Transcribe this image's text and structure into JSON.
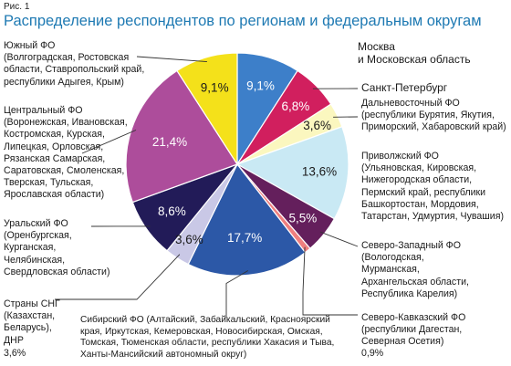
{
  "figure_label": "Рис. 1",
  "chart_data": {
    "type": "pie",
    "title": "Распределение респондентов по регионам и федеральным округам",
    "start": "top",
    "direction": "clockwise",
    "slices": [
      {
        "name": "Москва и Московская область",
        "label": "Москва\nи Московская область",
        "value": 9.1,
        "value_label": "9,1%",
        "color": "#3d7fc9",
        "text_color": "#ffffff"
      },
      {
        "name": "Санкт-Петербург",
        "label": "Санкт-Петербург",
        "value": 6.8,
        "value_label": "6,8%",
        "color": "#d11f5e",
        "text_color": "#ffffff"
      },
      {
        "name": "Дальневосточный ФО",
        "label": "Дальневосточный ФО\n(республики Бурятия, Якутия,\nПриморский, Хабаровский край)",
        "value": 3.6,
        "value_label": "3,6%",
        "color": "#fbf7bf",
        "text_color": "#1a1a1a"
      },
      {
        "name": "Приволжский ФО",
        "label": "Приволжский ФО\n(Ульяновская, Кировская,\nНижегородская области,\nПермский край, республики\nБашкортостан, Мордовия,\nТатарстан, Удмуртия, Чувашия)",
        "value": 13.6,
        "value_label": "13,6%",
        "color": "#c9e9f4",
        "text_color": "#1a1a1a"
      },
      {
        "name": "Северо-Западный ФО",
        "label": "Северо-Западный ФО\n(Вологодская,\nМурманская,\nАрхангельская области,\nРеспублика Карелия)",
        "value": 5.5,
        "value_label": "5,5%",
        "color": "#641f5c",
        "text_color": "#ffffff"
      },
      {
        "name": "Северо-Кавказский ФО",
        "label": "Северо-Кавказский ФО\n(республики Дагестан,\nСеверная Осетия)",
        "value": 0.9,
        "value_label": "0,9%",
        "color": "#ef7f7f",
        "text_color": "#1a1a1a"
      },
      {
        "name": "Сибирский ФО",
        "label": "Сибирский ФО (Алтайский, Забайкальский, Красноярский\nкрая, Иркутская, Кемеровская, Новосибирская, Омская,\nТомская, Тюменская области, республики Хакасия и Тыва,\nХанты-Мансийский автономный округ)",
        "value": 17.7,
        "value_label": "17,7%",
        "color": "#2c58a7",
        "text_color": "#ffffff"
      },
      {
        "name": "Страны СНГ",
        "label": "Страны СНГ\n(Казахстан,\nБеларусь),\nДНР",
        "value": 3.6,
        "value_label": "3,6%",
        "color": "#c9c8e6",
        "text_color": "#1a1a1a"
      },
      {
        "name": "Уральский ФО",
        "label": "Уральский ФО\n(Оренбургская,\nКурганская,\nЧелябинская,\nСвердловская области)",
        "value": 8.6,
        "value_label": "8,6%",
        "color": "#221b58",
        "text_color": "#ffffff"
      },
      {
        "name": "Центральный ФО",
        "label": "Центральный ФО\n(Воронежская, Ивановская,\nКостромская, Курская,\nЛипецкая, Орловская,\nРязанская Самарская,\nСаратовская, Смоленская,\nТверская, Тульская,\nЯрославская области)",
        "value": 21.4,
        "value_label": "21,4%",
        "color": "#ad4d9b",
        "text_color": "#ffffff"
      },
      {
        "name": "Южный ФО",
        "label": "Южный ФО\n(Волгоградская, Ростовская\nобласти, Ставропольский край,\nреспублики Адыгея, Крым)",
        "value": 9.1,
        "value_label": "9,1%",
        "color": "#f4e11a",
        "text_color": "#1a1a1a"
      }
    ]
  }
}
